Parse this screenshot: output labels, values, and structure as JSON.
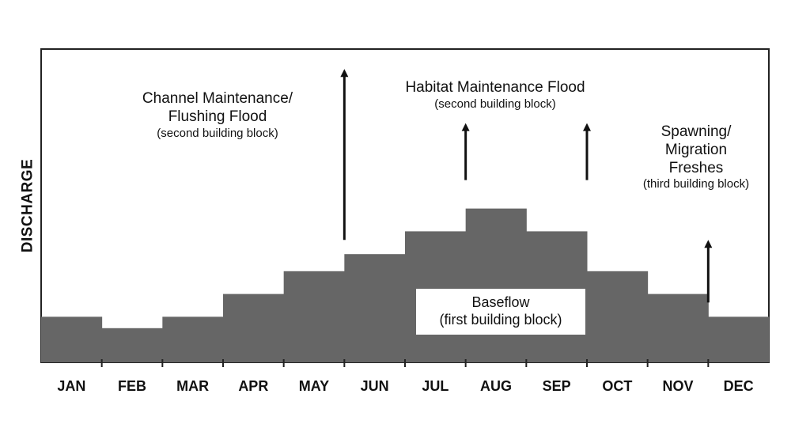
{
  "chart_data": {
    "type": "area",
    "title": "",
    "xlabel": "",
    "ylabel": "DISCHARGE",
    "categories": [
      "JAN",
      "FEB",
      "MAR",
      "APR",
      "MAY",
      "JUN",
      "JUL",
      "AUG",
      "SEP",
      "OCT",
      "NOV",
      "DEC"
    ],
    "series": [
      {
        "name": "",
        "values": [
          1.6,
          1.2,
          1.6,
          2.4,
          3.2,
          3.8,
          4.6,
          5.4,
          4.6,
          3.2,
          2.4,
          1.6
        ]
      }
    ],
    "ylim": [
      0,
      11
    ],
    "grid": false,
    "fill_color": "#666666",
    "arrow_color": "#111111",
    "arrows": [
      {
        "at_month": 5.0,
        "from": 4.3,
        "to": 10.3
      },
      {
        "at_month": 7.0,
        "from": 6.4,
        "to": 8.4
      },
      {
        "at_month": 9.0,
        "from": 6.4,
        "to": 8.4
      },
      {
        "at_month": 11.0,
        "from": 2.1,
        "to": 4.3
      }
    ],
    "annotations": {
      "channel": {
        "main": "Channel Maintenance/\nFlushing Flood",
        "sub": "(second building block)"
      },
      "habitat": {
        "main": "Habitat Maintenance Flood",
        "sub": "(second building block)"
      },
      "spawning": {
        "main": "Spawning/\nMigration\nFreshes",
        "sub": "(third building block)"
      },
      "baseflow": {
        "main": "Baseflow",
        "sub": "(first building block)"
      }
    }
  }
}
